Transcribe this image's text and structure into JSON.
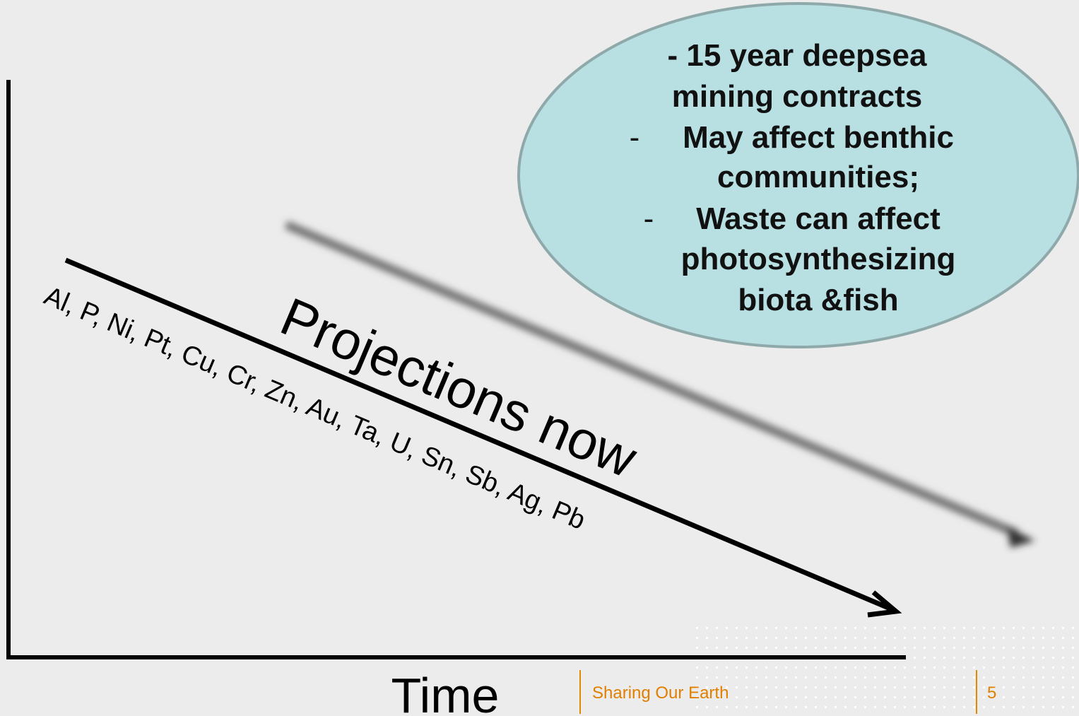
{
  "axis_label": "Time",
  "trend_label": "Projections now",
  "elements": "Al, P, Ni, Pt, Cu, Cr, Zn, Au, Ta, U, Sn, Sb, Ag, Pb",
  "callout": {
    "intro": [
      "- 15 year deepsea",
      "mining contracts"
    ],
    "bullets": [
      {
        "marker": "-",
        "lines": [
          "May affect benthic",
          "communities;"
        ]
      },
      {
        "marker": "-",
        "lines": [
          "Waste can affect",
          "photosynthesizing",
          "biota &fish"
        ]
      }
    ]
  },
  "footer": {
    "text": "Sharing Our Earth",
    "page": "5"
  }
}
